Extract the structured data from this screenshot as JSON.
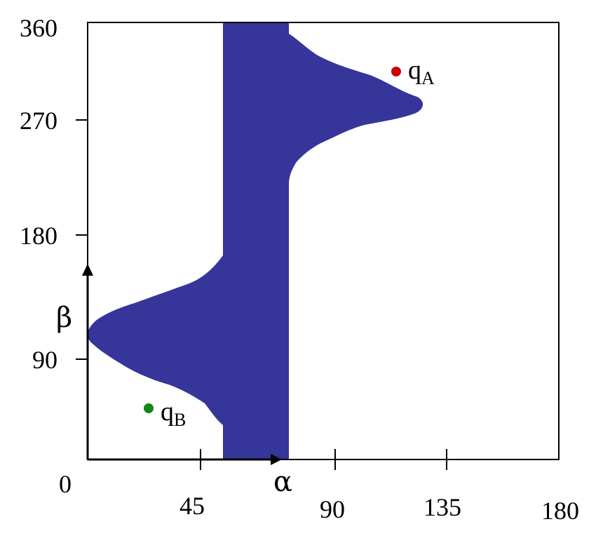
{
  "diagram": {
    "x_ticks": [
      {
        "id": "x0",
        "label": "0"
      },
      {
        "id": "x45",
        "label": "45"
      },
      {
        "id": "x90",
        "label": "90"
      },
      {
        "id": "x135",
        "label": "135"
      },
      {
        "id": "x180",
        "label": "180"
      }
    ],
    "y_ticks": [
      {
        "id": "y90",
        "label": "90"
      },
      {
        "id": "y180",
        "label": "180"
      },
      {
        "id": "y270",
        "label": "270"
      },
      {
        "id": "y360",
        "label": "360"
      }
    ],
    "x_axis_symbol": "α",
    "y_axis_symbol": "β",
    "points": {
      "qA": {
        "main": "q",
        "sub": "A",
        "color": "#cc0000"
      },
      "qB": {
        "main": "q",
        "sub": "B",
        "color": "#118811"
      }
    },
    "obstacle_color": "#35359a",
    "frame_color": "#000000"
  }
}
